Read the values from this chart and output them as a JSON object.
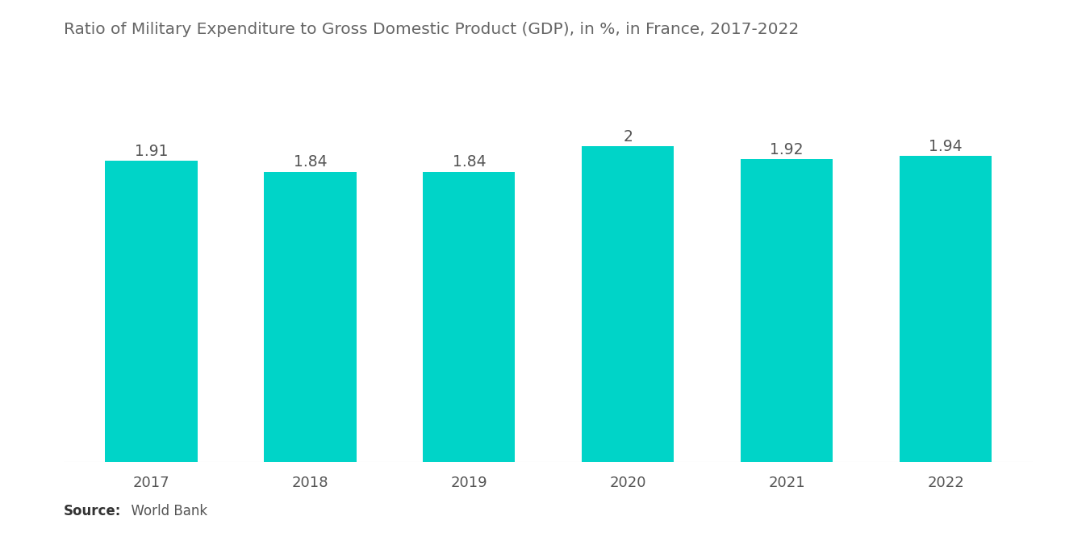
{
  "title": "Ratio of Military Expenditure to Gross Domestic Product (GDP), in %, in France, 2017-2022",
  "years": [
    "2017",
    "2018",
    "2019",
    "2020",
    "2021",
    "2022"
  ],
  "values": [
    1.91,
    1.84,
    1.84,
    2.0,
    1.92,
    1.94
  ],
  "bar_color": "#00D4C8",
  "label_color": "#555555",
  "title_color": "#666666",
  "source_bold": "Source:",
  "source_normal": "  World Bank",
  "background_color": "#ffffff",
  "ylim": [
    0,
    2.18
  ],
  "bar_width": 0.58,
  "title_fontsize": 14.5,
  "label_fontsize": 13.5,
  "tick_fontsize": 13,
  "source_fontsize": 12
}
